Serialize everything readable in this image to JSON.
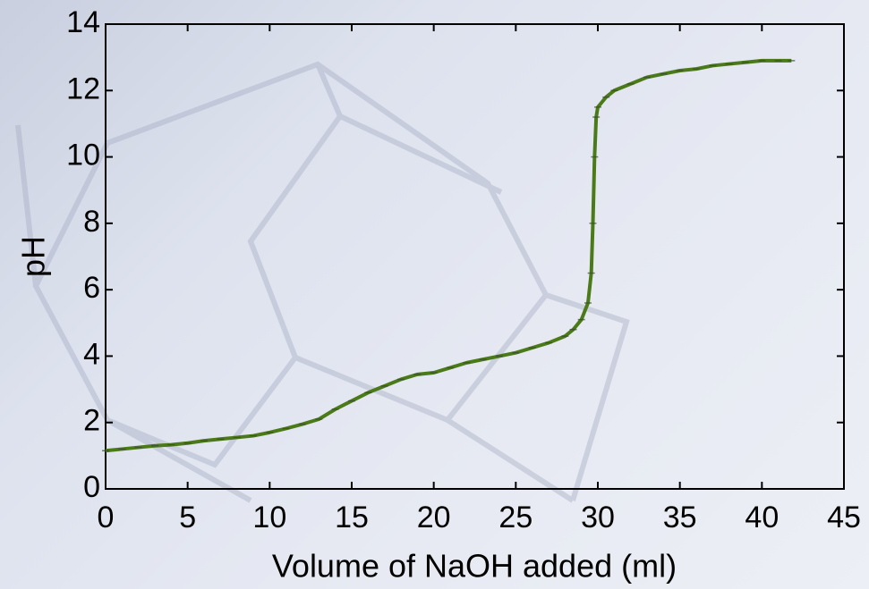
{
  "chart_data": {
    "type": "line",
    "x_label": "Volume of NaOH added (ml)",
    "y_label": "pH",
    "x": [
      0,
      1,
      2,
      3,
      4,
      5,
      6,
      7,
      8,
      9,
      10,
      11,
      12,
      13,
      14,
      15,
      16,
      17,
      18,
      19,
      20,
      21,
      22,
      23,
      24,
      25,
      26,
      27,
      28,
      28.5,
      29,
      29.4,
      29.6,
      29.7,
      29.8,
      29.9,
      30,
      30.5,
      31,
      32,
      33,
      34,
      35,
      36,
      37,
      38,
      39,
      40,
      41,
      41.8
    ],
    "series": [
      {
        "name": "pH",
        "color": "#4b7a18",
        "values": [
          1.15,
          1.2,
          1.25,
          1.3,
          1.33,
          1.38,
          1.45,
          1.5,
          1.55,
          1.6,
          1.7,
          1.82,
          1.95,
          2.1,
          2.4,
          2.65,
          2.9,
          3.1,
          3.3,
          3.45,
          3.5,
          3.65,
          3.8,
          3.9,
          4.0,
          4.1,
          4.25,
          4.4,
          4.6,
          4.8,
          5.1,
          5.6,
          6.5,
          8,
          10,
          11.2,
          11.5,
          11.8,
          12.0,
          12.2,
          12.4,
          12.5,
          12.6,
          12.65,
          12.75,
          12.8,
          12.85,
          12.9,
          12.9,
          12.9
        ]
      }
    ],
    "xlim": [
      0,
      45
    ],
    "xticks": [
      0,
      5,
      10,
      15,
      20,
      25,
      30,
      35,
      40,
      45
    ],
    "ylim": [
      0,
      14
    ],
    "yticks": [
      0,
      2,
      4,
      6,
      8,
      10,
      12,
      14
    ]
  }
}
